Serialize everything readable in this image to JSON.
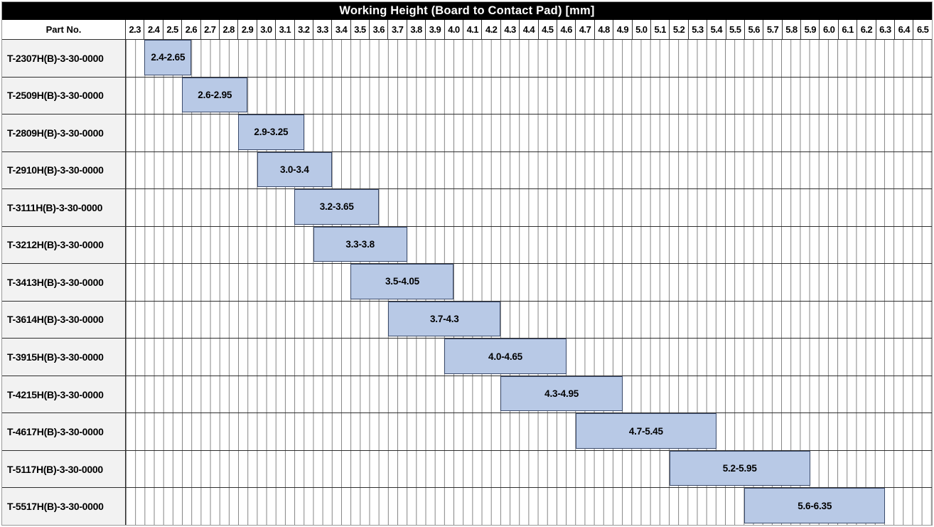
{
  "title": "Working Height (Board to Contact Pad) [mm]",
  "header": {
    "part_col_label": "Part No."
  },
  "colors": {
    "title_bg": "#000000",
    "title_text": "#ffffff",
    "bar_fill": "#b8c9e6",
    "bar_border": "#3a4a6b",
    "part_cell_bg": "#f2f2f2",
    "gridline": "#828282",
    "row_border": "#2e2e2e"
  },
  "chart_data": {
    "type": "bar",
    "subtype": "horizontal-range-gantt",
    "title": "Working Height (Board to Contact Pad) [mm]",
    "axis": {
      "unit": "mm",
      "min": 2.3,
      "max": 6.6,
      "tick_step": 0.1,
      "minor_gridline_step": 0.05,
      "tick_labels": [
        "2.3",
        "2.4",
        "2.5",
        "2.6",
        "2.7",
        "2.8",
        "2.9",
        "3.0",
        "3.1",
        "3.2",
        "3.3",
        "3.4",
        "3.5",
        "3.6",
        "3.7",
        "3.8",
        "3.9",
        "4.0",
        "4.1",
        "4.2",
        "4.3",
        "4.4",
        "4.5",
        "4.6",
        "4.7",
        "4.8",
        "4.9",
        "5.0",
        "5.1",
        "5.2",
        "5.3",
        "5.4",
        "5.5",
        "5.6",
        "5.7",
        "5.8",
        "5.9",
        "6.0",
        "6.1",
        "6.2",
        "6.3",
        "6.4",
        "6.5"
      ]
    },
    "rows": [
      {
        "part_no": "T-2307H(B)-3-30-0000",
        "start": 2.4,
        "end": 2.65,
        "label": "2.4-2.65"
      },
      {
        "part_no": "T-2509H(B)-3-30-0000",
        "start": 2.6,
        "end": 2.95,
        "label": "2.6-2.95"
      },
      {
        "part_no": "T-2809H(B)-3-30-0000",
        "start": 2.9,
        "end": 3.25,
        "label": "2.9-3.25"
      },
      {
        "part_no": "T-2910H(B)-3-30-0000",
        "start": 3.0,
        "end": 3.4,
        "label": "3.0-3.4"
      },
      {
        "part_no": "T-3111H(B)-3-30-0000",
        "start": 3.2,
        "end": 3.65,
        "label": "3.2-3.65"
      },
      {
        "part_no": "T-3212H(B)-3-30-0000",
        "start": 3.3,
        "end": 3.8,
        "label": "3.3-3.8"
      },
      {
        "part_no": "T-3413H(B)-3-30-0000",
        "start": 3.5,
        "end": 4.05,
        "label": "3.5-4.05"
      },
      {
        "part_no": "T-3614H(B)-3-30-0000",
        "start": 3.7,
        "end": 4.3,
        "label": "3.7-4.3"
      },
      {
        "part_no": "T-3915H(B)-3-30-0000",
        "start": 4.0,
        "end": 4.65,
        "label": "4.0-4.65"
      },
      {
        "part_no": "T-4215H(B)-3-30-0000",
        "start": 4.3,
        "end": 4.95,
        "label": "4.3-4.95"
      },
      {
        "part_no": "T-4617H(B)-3-30-0000",
        "start": 4.7,
        "end": 5.45,
        "label": "4.7-5.45"
      },
      {
        "part_no": "T-5117H(B)-3-30-0000",
        "start": 5.2,
        "end": 5.95,
        "label": "5.2-5.95"
      },
      {
        "part_no": "T-5517H(B)-3-30-0000",
        "start": 5.6,
        "end": 6.35,
        "label": "5.6-6.35"
      }
    ]
  }
}
